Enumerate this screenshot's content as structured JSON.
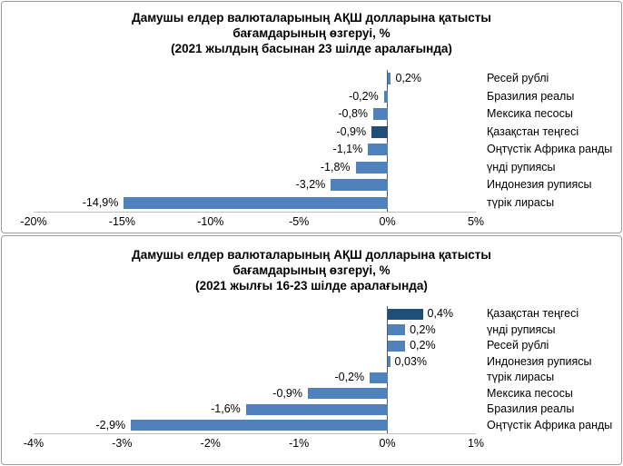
{
  "colors": {
    "bar": "#4f81bd",
    "bar_highlight": "#1f4e79",
    "axis_line": "#c0c0c0",
    "zero_line": "#595959",
    "panel_border": "#9b9b9b",
    "text": "#000000"
  },
  "chart_data": [
    {
      "type": "bar",
      "orientation": "horizontal",
      "title": "Дамушы елдер валюталарының АҚШ долларына қатысты\nбағамдарының өзгеруі, %\n(2021 жылдың басынан 23 шілде аралағында)",
      "xlabel": "",
      "ylabel": "",
      "xlim": [
        -20,
        5
      ],
      "grid": false,
      "legend": false,
      "value_suffix": "%",
      "rows": [
        {
          "category": "Ресей рублі",
          "value": 0.2,
          "label": "0,2%",
          "highlight": false
        },
        {
          "category": "Бразилия реалы",
          "value": -0.2,
          "label": "-0,2%",
          "highlight": false
        },
        {
          "category": "Мексика песосы",
          "value": -0.8,
          "label": "-0,8%",
          "highlight": false
        },
        {
          "category": "Қазақстан теңгесі",
          "value": -0.9,
          "label": "-0,9%",
          "highlight": true
        },
        {
          "category": "Оңтүстік Африка ранды",
          "value": -1.1,
          "label": "-1,1%",
          "highlight": false
        },
        {
          "category": "үнді рупиясы",
          "value": -1.8,
          "label": "-1,8%",
          "highlight": false
        },
        {
          "category": "Индонезия рупиясы",
          "value": -3.2,
          "label": "-3,2%",
          "highlight": false
        },
        {
          "category": "түрік лирасы",
          "value": -14.9,
          "label": "-14,9%",
          "highlight": false
        }
      ],
      "ticks": [
        {
          "value": -20,
          "label": "-20%"
        },
        {
          "value": -15,
          "label": "-15%"
        },
        {
          "value": -10,
          "label": "-10%"
        },
        {
          "value": -5,
          "label": "-5%"
        },
        {
          "value": 0,
          "label": "0%"
        },
        {
          "value": 5,
          "label": "5%"
        }
      ]
    },
    {
      "type": "bar",
      "orientation": "horizontal",
      "title": "Дамушы елдер валюталарының АҚШ долларына қатысты\nбағамдарының өзгеруі, %\n(2021 жылғы 16-23 шілде аралағында)",
      "xlabel": "",
      "ylabel": "",
      "xlim": [
        -4,
        1
      ],
      "grid": false,
      "legend": false,
      "value_suffix": "%",
      "rows": [
        {
          "category": "Қазақстан теңгесі",
          "value": 0.4,
          "label": "0,4%",
          "highlight": true
        },
        {
          "category": "үнді рупиясы",
          "value": 0.2,
          "label": "0,2%",
          "highlight": false
        },
        {
          "category": "Ресей рублі",
          "value": 0.2,
          "label": "0,2%",
          "highlight": false
        },
        {
          "category": "Индонезия рупиясы",
          "value": 0.03,
          "label": "0,03%",
          "highlight": false
        },
        {
          "category": "түрік лирасы",
          "value": -0.2,
          "label": "-0,2%",
          "highlight": false
        },
        {
          "category": "Мексика песосы",
          "value": -0.9,
          "label": "-0,9%",
          "highlight": false
        },
        {
          "category": "Бразилия реалы",
          "value": -1.6,
          "label": "-1,6%",
          "highlight": false
        },
        {
          "category": "Оңтүстік Африка ранды",
          "value": -2.9,
          "label": "-2,9%",
          "highlight": false
        }
      ],
      "ticks": [
        {
          "value": -4,
          "label": "-4%"
        },
        {
          "value": -3,
          "label": "-3%"
        },
        {
          "value": -2,
          "label": "-2%"
        },
        {
          "value": -1,
          "label": "-1%"
        },
        {
          "value": 0,
          "label": "0%"
        },
        {
          "value": 1,
          "label": "1%"
        }
      ]
    }
  ]
}
